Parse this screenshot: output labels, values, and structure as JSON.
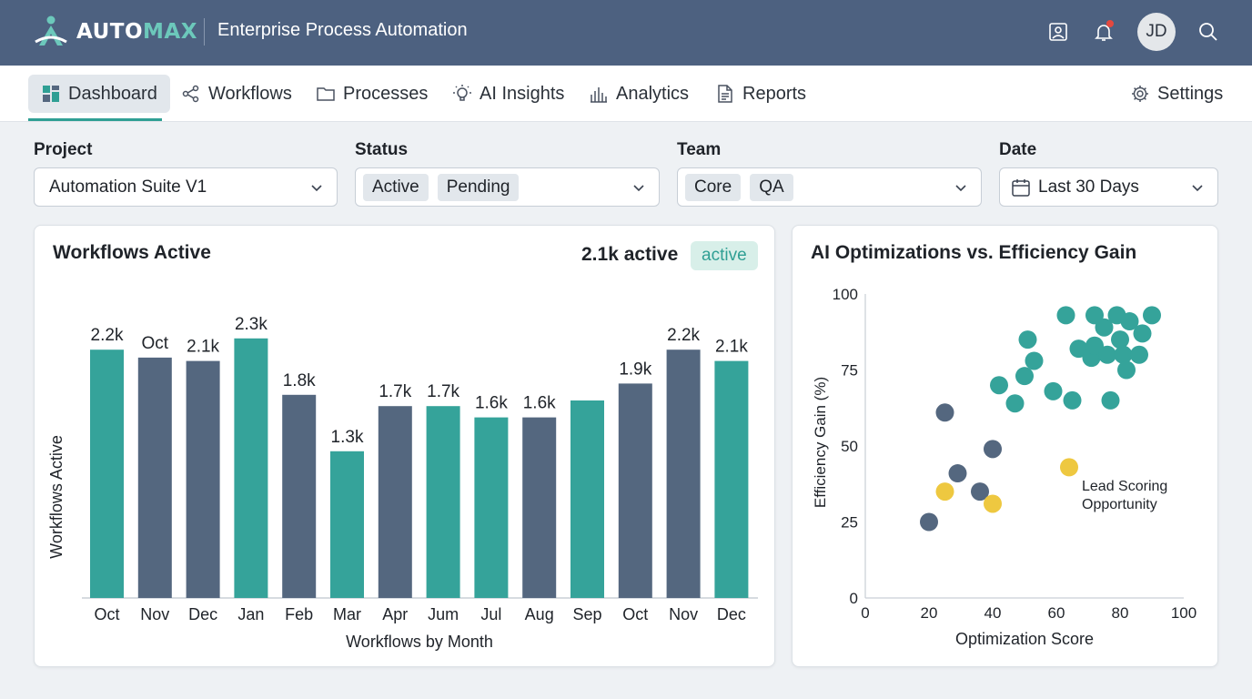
{
  "header": {
    "logo_auto": "AUTO",
    "logo_max": "MAX",
    "app_title": "Enterprise Process Automation",
    "icons": [
      "image-icon",
      "bell-icon",
      "search-icon"
    ],
    "avatar_initials": "JD"
  },
  "nav": {
    "items": [
      {
        "label": "Dashboard",
        "icon": "dashboard-icon",
        "active": true
      },
      {
        "label": "Workflows",
        "icon": "share-icon"
      },
      {
        "label": "Processes",
        "icon": "folder-icon"
      },
      {
        "label": "AI Insights",
        "icon": "lightbulb-icon"
      },
      {
        "label": "Analytics",
        "icon": "bar-chart-icon"
      },
      {
        "label": "Reports",
        "icon": "document-icon"
      }
    ],
    "settings_label": "Settings"
  },
  "filters": {
    "project": {
      "label": "Project",
      "value": "Automation Suite V1"
    },
    "status": {
      "label": "Status",
      "chips": [
        "Active",
        "Pending"
      ]
    },
    "team": {
      "label": "Team",
      "chips": [
        "Core",
        "QA"
      ]
    },
    "date": {
      "label": "Date",
      "value": "Last 30 Days"
    }
  },
  "bar_card": {
    "title": "Workflows Active",
    "stat": "2.1k active",
    "badge": "active"
  },
  "scatter_card": {
    "title": "AI Optimizations vs. Efficiency Gain",
    "annotation": [
      "Lead Scoring",
      "Opportunity"
    ]
  },
  "colors": {
    "teal": "#35a39a",
    "slate": "#54677f",
    "yellow": "#eec840",
    "header": "#4d6180"
  },
  "chart_data": [
    {
      "type": "bar",
      "xlabel": "Workflows by Month",
      "ylabel": "Workflows Active",
      "ylim": [
        0,
        2500
      ],
      "categories": [
        "Oct",
        "Nov",
        "Dec",
        "Jan",
        "Feb",
        "Mar",
        "Apr",
        "Jum",
        "Jul",
        "Aug",
        "Sep",
        "Oct",
        "Nov",
        "Dec"
      ],
      "values": [
        2.2,
        2.13,
        2.1,
        2.3,
        1.8,
        1.3,
        1.7,
        1.7,
        1.6,
        1.6,
        1.75,
        1.9,
        2.2,
        2.1
      ],
      "value_labels": [
        "2.2k",
        "Oct",
        "2.1k",
        "2.3k",
        "1.8k",
        "1.3k",
        "1.7k",
        "1.7k",
        "1.6k",
        "1.6k",
        "",
        "1.9k",
        "2.2k",
        "2.1k"
      ],
      "bar_colors": [
        "teal",
        "slate",
        "slate",
        "teal",
        "slate",
        "teal",
        "slate",
        "teal",
        "teal",
        "slate",
        "teal",
        "slate",
        "slate",
        "teal"
      ]
    },
    {
      "type": "scatter",
      "xlabel": "Optimization Score",
      "ylabel": "Efficiency Gain (%)",
      "xlim": [
        0,
        100
      ],
      "ylim": [
        0,
        100
      ],
      "xticks": [
        0,
        20,
        40,
        60,
        80,
        100
      ],
      "yticks": [
        0,
        25,
        50,
        75,
        100
      ],
      "grid": false,
      "series": [
        {
          "color": "slate",
          "points": [
            [
              20,
              25
            ],
            [
              25,
              61
            ],
            [
              29,
              41
            ],
            [
              36,
              35
            ],
            [
              40,
              49
            ]
          ]
        },
        {
          "color": "yellow",
          "points": [
            [
              25,
              35
            ],
            [
              40,
              31
            ],
            [
              64,
              43
            ]
          ]
        },
        {
          "color": "teal",
          "points": [
            [
              42,
              70
            ],
            [
              47,
              64
            ],
            [
              50,
              73
            ],
            [
              51,
              85
            ],
            [
              53,
              78
            ],
            [
              59,
              68
            ],
            [
              63,
              93
            ],
            [
              65,
              65
            ],
            [
              67,
              82
            ],
            [
              72,
              93
            ],
            [
              71,
              79
            ],
            [
              72,
              83
            ],
            [
              75,
              89
            ],
            [
              76,
              80
            ],
            [
              77,
              65
            ],
            [
              79,
              93
            ],
            [
              80,
              85
            ],
            [
              81,
              80
            ],
            [
              82,
              75
            ],
            [
              83,
              91
            ],
            [
              87,
              87
            ],
            [
              86,
              80
            ],
            [
              90,
              93
            ]
          ]
        }
      ]
    }
  ]
}
